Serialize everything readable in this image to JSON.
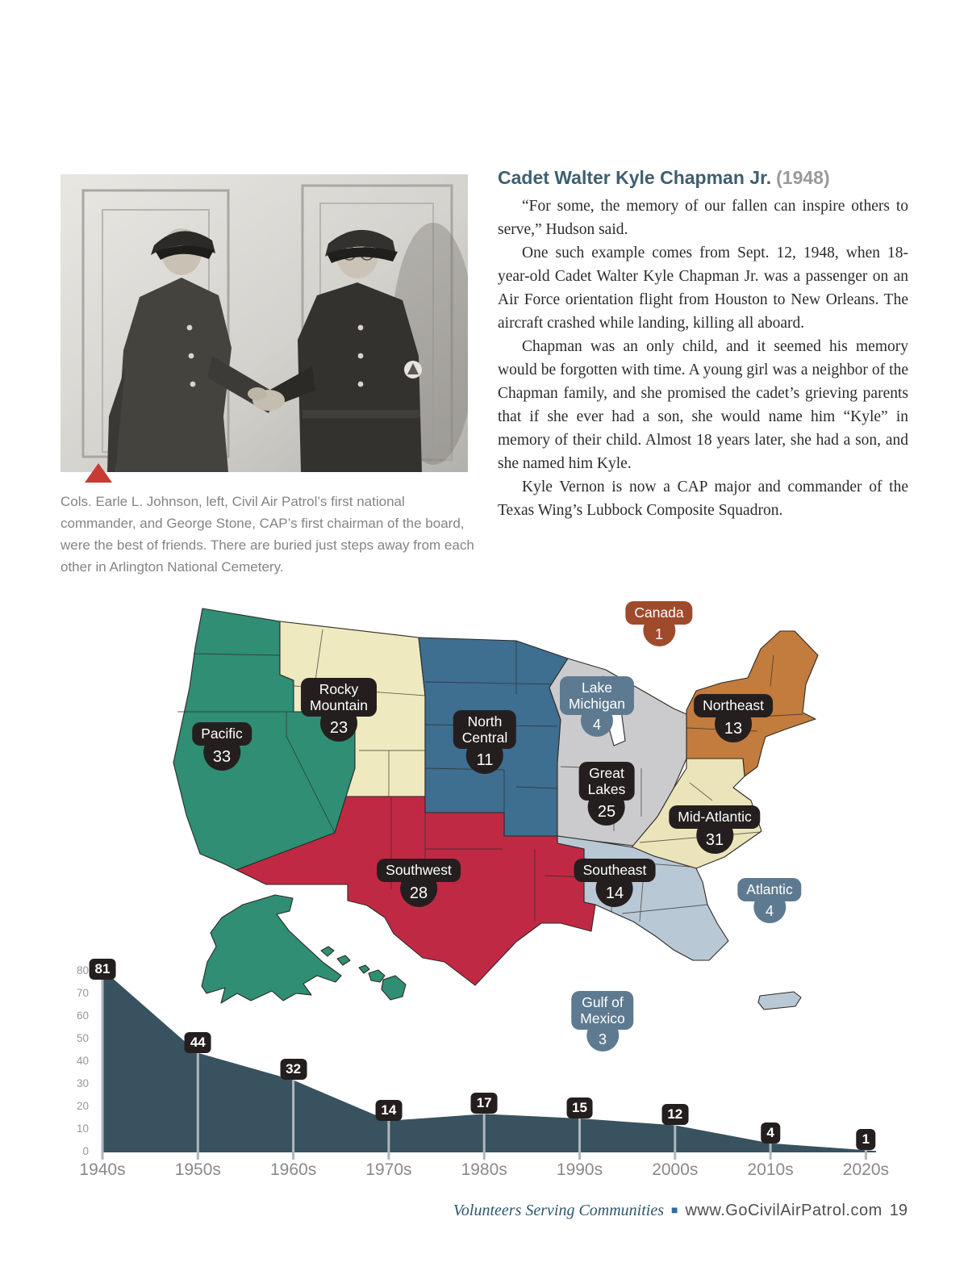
{
  "article": {
    "title": "Cadet Walter Kyle Chapman Jr.",
    "title_year": "(1948)",
    "paragraphs": [
      "“For some, the memory of our fallen can inspire others to serve,” Hudson said.",
      "One such example comes from Sept. 12, 1948, when 18-year-old Cadet Walter Kyle Chapman Jr. was a passenger on an Air Force orientation flight from Houston to New Orleans. The aircraft crashed while landing, killing all aboard.",
      "Chapman was an only child, and it seemed his memory would be forgotten with time. A young girl was a neighbor of the Chapman family, and she promised the cadet’s grieving parents that if she ever had a son, she would name him “Kyle” in memory of their child. Almost 18 years later, she had a son, and she named him Kyle.",
      "Kyle Vernon is now a CAP major and commander of the Texas Wing’s Lubbock Composite Squadron."
    ]
  },
  "photo": {
    "caption": "Cols. Earle L. Johnson, left, Civil Air Patrol’s first national commander, and George Stone, CAP’s first chairman of the board, were the best of friends. There are buried just steps away from each other in Arlington National Cemetery.",
    "marker_color": "#c63b33"
  },
  "map": {
    "colors": {
      "pacific_green": "#2f8e74",
      "rocky_cream": "#efe9c0",
      "north_central_blue": "#3e6e90",
      "great_lakes_gray": "#cbcbcd",
      "northeast_orange": "#c17c3e",
      "mid_atlantic_cream": "#ebe4ba",
      "southwest_red": "#c02944",
      "southeast_ltblue": "#b9c8d5",
      "dark_pin": "#241f1e",
      "slate_pin": "#5e7a90",
      "canada_pin": "#a04a2c"
    },
    "pins": [
      {
        "name": "Pacific",
        "value": "33"
      },
      {
        "name": "Rocky\nMountain",
        "value": "23"
      },
      {
        "name": "North\nCentral",
        "value": "11"
      },
      {
        "name": "Lake\nMichigan",
        "value": "4"
      },
      {
        "name": "Great\nLakes",
        "value": "25"
      },
      {
        "name": "Northeast",
        "value": "13"
      },
      {
        "name": "Mid-Atlantic",
        "value": "31"
      },
      {
        "name": "Southwest",
        "value": "28"
      },
      {
        "name": "Southeast",
        "value": "14"
      },
      {
        "name": "Canada",
        "value": "1"
      },
      {
        "name": "Atlantic",
        "value": "4"
      },
      {
        "name": "Gulf of\nMexico",
        "value": "3"
      }
    ]
  },
  "chart_data": {
    "type": "area",
    "categories": [
      "1940s",
      "1950s",
      "1960s",
      "1970s",
      "1980s",
      "1990s",
      "2000s",
      "2010s",
      "2020s"
    ],
    "values": [
      81,
      44,
      32,
      14,
      17,
      15,
      12,
      4,
      1
    ],
    "title": "",
    "xlabel": "",
    "ylabel": "",
    "ylim": [
      0,
      80
    ],
    "yticks": [
      0,
      10,
      20,
      30,
      40,
      50,
      60,
      70,
      80
    ],
    "grid": false,
    "legend": "none",
    "fill_color": "#38525f",
    "leader_color": "#b0b6bd",
    "label_box_color": "#241f1e"
  },
  "footer": {
    "tagline": "Volunteers Serving Communities",
    "separator": "■",
    "url": "www.GoCivilAirPatrol.com",
    "page_number": "19"
  }
}
